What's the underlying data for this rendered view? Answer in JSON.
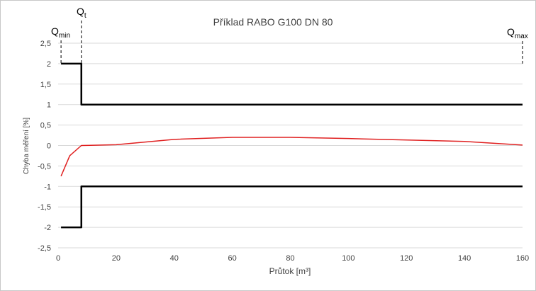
{
  "chart_data": {
    "type": "line",
    "title": "Příklad RABO G100 DN 80",
    "xlabel": "Průtok [m³]",
    "ylabel": "Chyba měření [%]",
    "xlim": [
      0,
      160
    ],
    "ylim": [
      -2.5,
      2.5
    ],
    "x_ticks": [
      "0",
      "20",
      "40",
      "60",
      "80",
      "100",
      "120",
      "140",
      "160"
    ],
    "y_ticks": [
      "2,5",
      "2",
      "1,5",
      "1",
      "0,5",
      "0",
      "-0,5",
      "-1",
      "-1,5",
      "-2",
      "-2,5"
    ],
    "grid": "horizontal",
    "series": [
      {
        "role": "measurement",
        "color": "#e02020",
        "x": [
          1,
          4,
          8,
          20,
          40,
          60,
          80,
          100,
          140,
          160
        ],
        "y": [
          -0.75,
          -0.25,
          0.0,
          0.02,
          0.15,
          0.2,
          0.2,
          0.17,
          0.1,
          0.01
        ]
      },
      {
        "role": "upper-limit",
        "color": "#000000",
        "x": [
          1,
          8,
          8,
          160
        ],
        "y": [
          2,
          2,
          1,
          1
        ]
      },
      {
        "role": "lower-limit",
        "color": "#000000",
        "x": [
          1,
          8,
          8,
          160
        ],
        "y": [
          -2,
          -2,
          -1,
          -1
        ]
      }
    ],
    "markers": [
      {
        "main": "Q",
        "sub": "min",
        "x": 1
      },
      {
        "main": "Q",
        "sub": "t",
        "x": 8
      },
      {
        "main": "Q",
        "sub": "max",
        "x": 160
      }
    ]
  }
}
